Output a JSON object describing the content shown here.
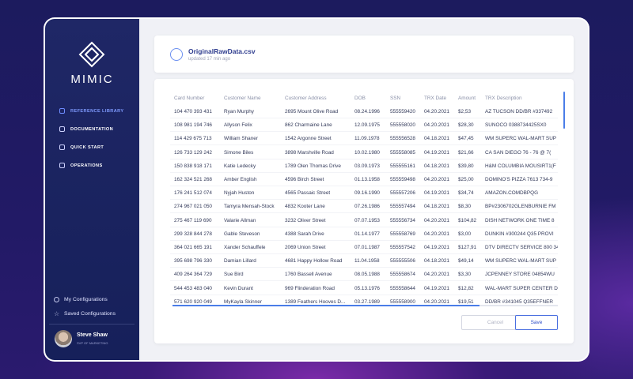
{
  "brand": "MIMIC",
  "nav": [
    "REFERENCE LIBRARY",
    "DOCUMENTATION",
    "QUICK START",
    "OPERATIONS"
  ],
  "sidebar_links": [
    "My Configurations",
    "Saved Configurations"
  ],
  "user": {
    "name": "Steve Shaw",
    "role": "SVP OF MARKETING"
  },
  "file": {
    "name": "OriginalRawData.csv",
    "updated": "updated 17 min ago"
  },
  "table": {
    "columns": [
      "Card Number",
      "Customer Name",
      "Customer Address",
      "DOB",
      "SSN",
      "TRX Date",
      "Amount",
      "TRX Description"
    ],
    "rows": [
      [
        "104 470 393 431",
        "Ryan Murphy",
        "2695 Mount Olive Road",
        "08.24.1996",
        "555559420",
        "04.20.2021",
        "$2,53",
        "AZ TUCSON DD/BR #337492"
      ],
      [
        "108 981 194 746",
        "Allyson Felix",
        "862 Charmaine Lane",
        "12.09.1975",
        "555558020",
        "04.20.2021",
        "$28,30",
        "SUNOCO 0388734425SX0"
      ],
      [
        "114 429 675 713",
        "William Shaner",
        "1542 Argonne Street",
        "11.09.1978",
        "555556528",
        "04.18.2021",
        "$47,45",
        "WM SUPERC WAL-MART SUP"
      ],
      [
        "126 733 129 242",
        "Simone Biles",
        "3898 Marshville Road",
        "10.02.1980",
        "555558085",
        "04.19.2021",
        "$21,66",
        "CA SAN DIEGO 76 - 76 @ 7("
      ],
      [
        "150 838 918 171",
        "Katie Ledecky",
        "1789 Olen Thomas Drive",
        "03.09.1973",
        "555555161",
        "04.18.2021",
        "$39,80",
        "H&M COLUMBIA MOUSIRT1(F"
      ],
      [
        "162 324 521 268",
        "Amber English",
        "4596 Birch Street",
        "01.13.1958",
        "555559498",
        "04.20.2021",
        "$25,00",
        "DOMINO'S PIZZA 7613 734-9"
      ],
      [
        "176 241 512 074",
        "Nyjah Huston",
        "4565 Passaic Street",
        "09.16.1990",
        "555557206",
        "04.19.2021",
        "$34,74",
        "AMAZON.COMDBPQG"
      ],
      [
        "274 967 021 050",
        "Tamyra Mensah-Stock",
        "4832 Kooter Lane",
        "07.26.1986",
        "555557494",
        "04.18.2021",
        "$8,30",
        "BP#2306702GLENBURNIE FM"
      ],
      [
        "275 467 119 690",
        "Valarie Allman",
        "3232 Oliver Street",
        "07.07.1953",
        "555556734",
        "04.20.2021",
        "$104,82",
        "DISH NETWORK ONE TIME 8"
      ],
      [
        "299 328 844 278",
        "Gable Steveson",
        "4388 Sarah Drive",
        "01.14.1977",
        "555558769",
        "04.20.2021",
        "$3,00",
        "DUNKIN #300244 Q35 PROVI"
      ],
      [
        "364 021 665 191",
        "Xander Schauffele",
        "2069 Union Street",
        "07.01.1987",
        "555557542",
        "04.19.2021",
        "$127,91",
        "DTV DIRECTV SERVICE 800 34"
      ],
      [
        "395 698 796 330",
        "Damian Lillard",
        "4681 Happy Hollow Road",
        "11.04.1958",
        "555555506",
        "04.18.2021",
        "$49,14",
        "WM SUPERC WAL-MART SUP"
      ],
      [
        "409 264 364 729",
        "Sue Bird",
        "1760 Bassell Avenue",
        "08.05.1988",
        "555558674",
        "04.20.2021",
        "$3,30",
        "JCPENNEY STORE 04854WU"
      ],
      [
        "544 453 483 040",
        "Kevin Durant",
        "969 Flinderation Road",
        "05.13.1976",
        "555558644",
        "04.19.2021",
        "$12,82",
        "WAL-MART SUPER CENTER D"
      ],
      [
        "571 620 920 049",
        "MyKayla Skinner",
        "1389 Feathers Hooves D...",
        "03.27.1989",
        "555558900",
        "04.20.2021",
        "$19,51",
        "DD/BR #341045 Q35EFFNER"
      ]
    ]
  },
  "buttons": {
    "cancel": "Cancel",
    "save": "Save"
  }
}
